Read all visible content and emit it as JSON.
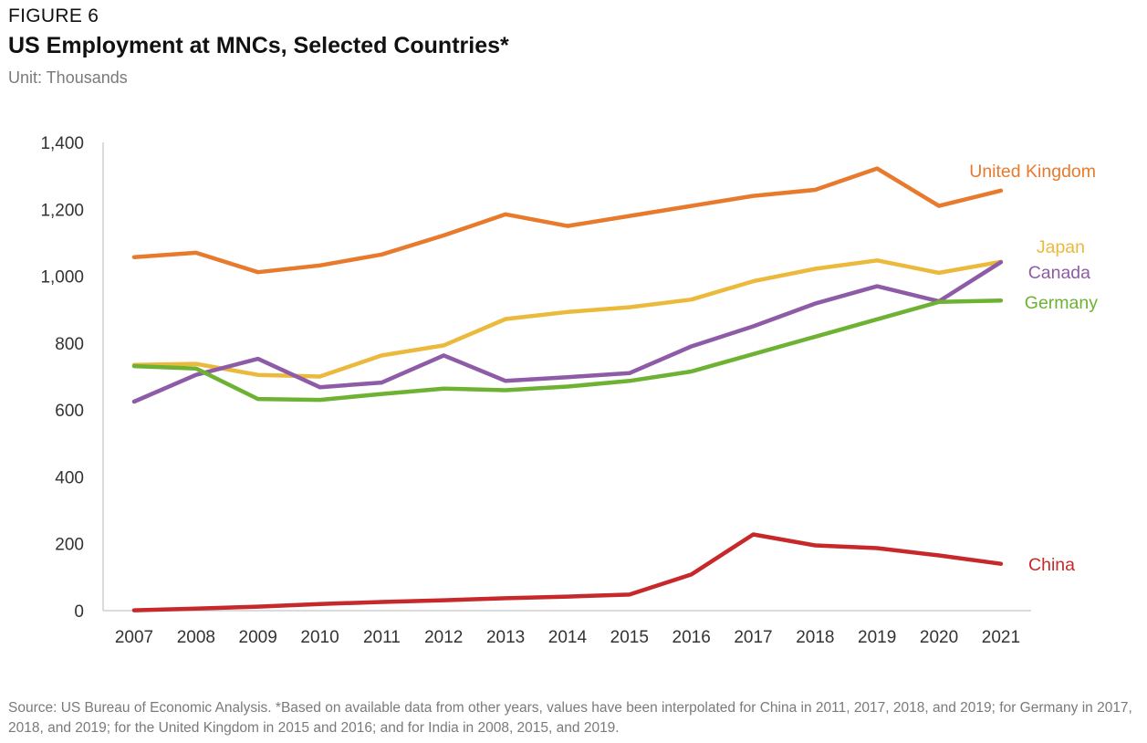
{
  "header": {
    "figure_label": "FIGURE 6",
    "title": "US Employment at MNCs, Selected Countries*",
    "subtitle": "Unit: Thousands"
  },
  "footer": {
    "source": "Source: US Bureau of Economic Analysis. *Based on available data from other years, values have been interpolated for China in 2011, 2017, 2018, and 2019; for Germany in 2017, 2018, and 2019; for the United Kingdom in 2015 and 2016; and for India in 2008, 2015, and 2019."
  },
  "chart_data": {
    "type": "line",
    "title": "US Employment at MNCs, Selected Countries*",
    "subtitle": "Unit: Thousands",
    "xlabel": "",
    "ylabel": "",
    "ylim": [
      0,
      1400
    ],
    "yticks": [
      0,
      200,
      400,
      600,
      800,
      1000,
      1200,
      1400
    ],
    "ytick_labels": [
      "0",
      "200",
      "400",
      "600",
      "800",
      "1,000",
      "1,200",
      "1,400"
    ],
    "grid": false,
    "legend": "direct labels at right end of lines",
    "x": [
      "2007",
      "2008",
      "2009",
      "2010",
      "2011",
      "2012",
      "2013",
      "2014",
      "2015",
      "2016",
      "2017",
      "2018",
      "2019",
      "2020",
      "2021"
    ],
    "series": [
      {
        "name": "United Kingdom",
        "color": "#E87A2D",
        "values": [
          1057,
          1070,
          1012,
          1032,
          1065,
          1122,
          1185,
          1150,
          1180,
          1210,
          1240,
          1258,
          1322,
          1210,
          1256
        ]
      },
      {
        "name": "Japan",
        "color": "#EBB93C",
        "values": [
          735,
          738,
          705,
          700,
          763,
          793,
          872,
          893,
          907,
          930,
          985,
          1022,
          1047,
          1010,
          1043
        ]
      },
      {
        "name": "Canada",
        "color": "#8E5BA6",
        "values": [
          625,
          705,
          753,
          668,
          682,
          763,
          687,
          698,
          710,
          790,
          850,
          918,
          970,
          925,
          1042
        ]
      },
      {
        "name": "Germany",
        "color": "#6DB232",
        "values": [
          731,
          724,
          633,
          630,
          648,
          664,
          659,
          670,
          687,
          715,
          767,
          819,
          871,
          923,
          927
        ]
      },
      {
        "name": "China",
        "color": "#C7282A",
        "values": [
          1,
          6,
          12,
          20,
          26,
          31,
          37,
          42,
          48,
          108,
          228,
          195,
          187,
          165,
          140
        ]
      }
    ]
  }
}
